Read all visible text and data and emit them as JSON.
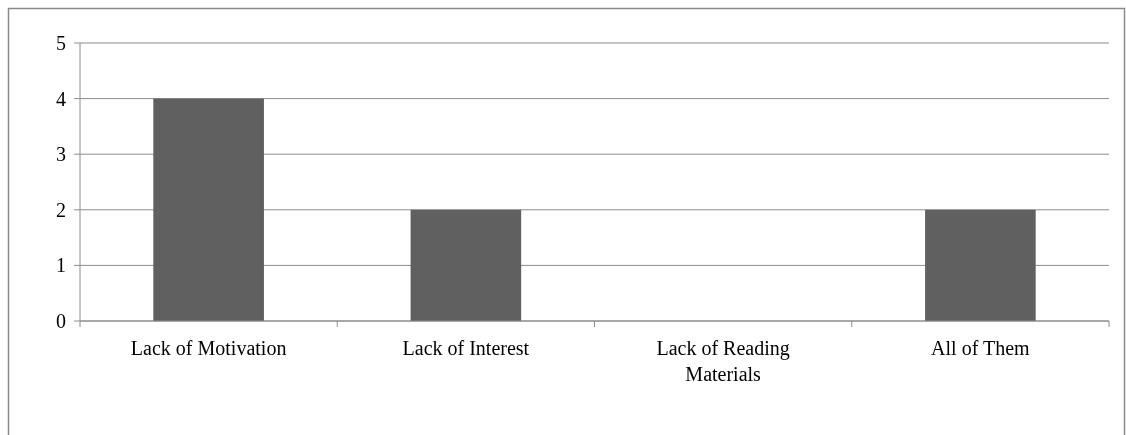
{
  "chart_data": {
    "type": "bar",
    "categories": [
      "Lack of Motivation",
      "Lack of Interest",
      "Lack of Reading Materials",
      "All of Them"
    ],
    "values": [
      4,
      2,
      0,
      2
    ],
    "color": "#606060",
    "ylim": [
      0,
      5
    ],
    "yticks": [
      0,
      1,
      2,
      3,
      4,
      5
    ],
    "grid": "y"
  }
}
